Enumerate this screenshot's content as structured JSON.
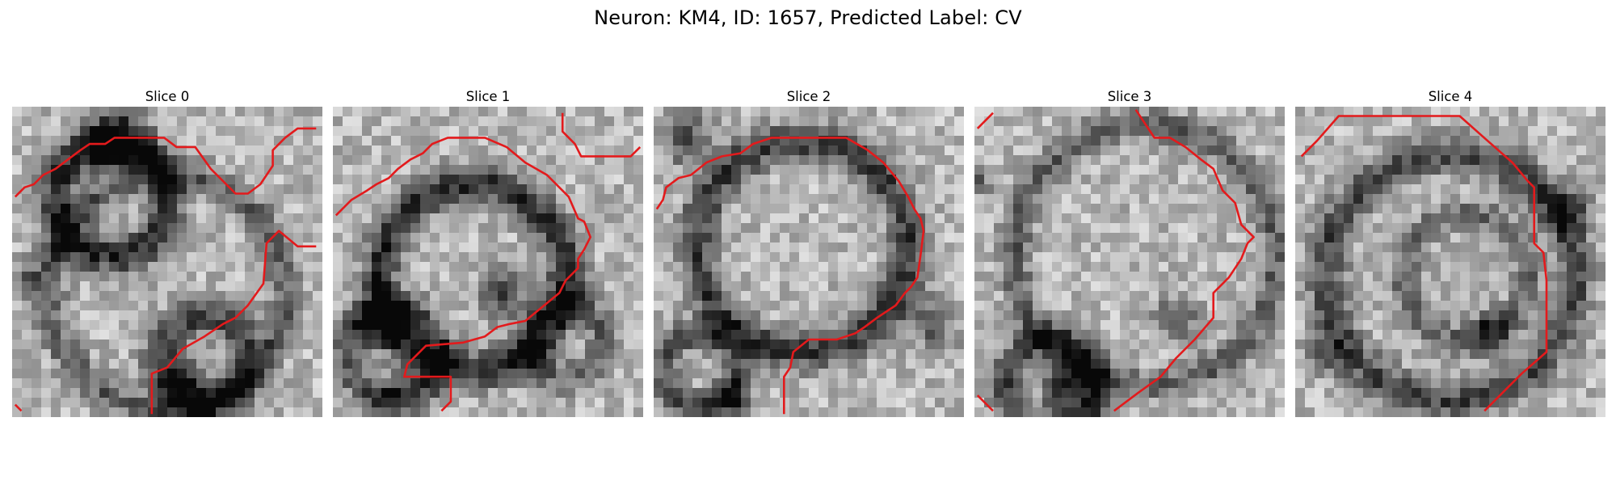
{
  "figure": {
    "title": "Neuron: KM4, ID: 1657, Predicted Label: CV"
  },
  "panels": [
    {
      "title": "Slice 0"
    },
    {
      "title": "Slice 1"
    },
    {
      "title": "Slice 2"
    },
    {
      "title": "Slice 3"
    },
    {
      "title": "Slice 4"
    }
  ],
  "colors": {
    "contour": "#e31a1c",
    "background": "#ffffff"
  }
}
